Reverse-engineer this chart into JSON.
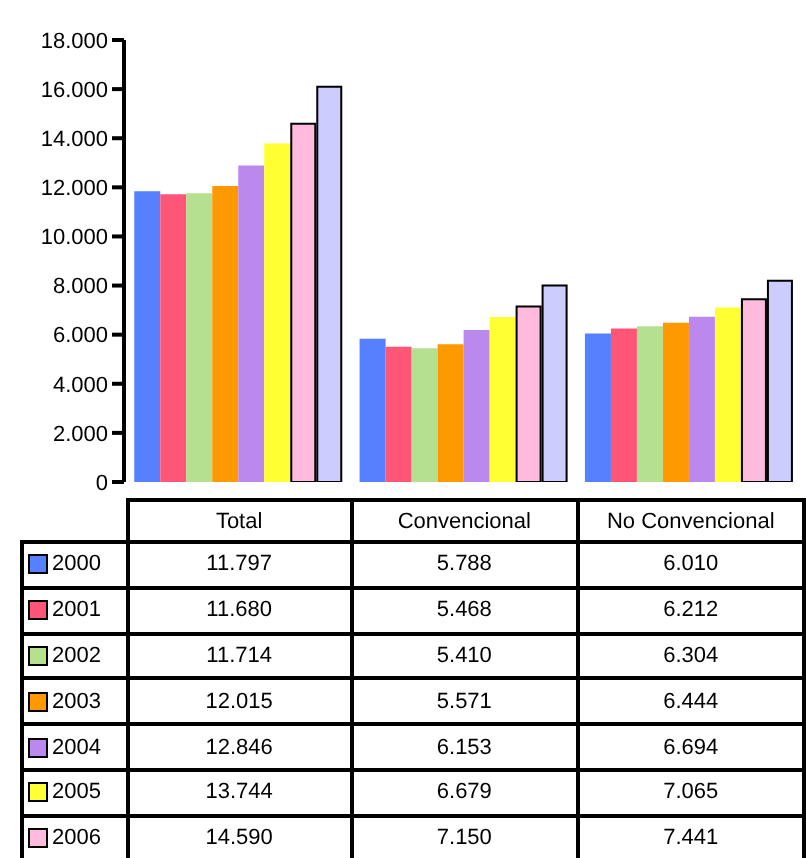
{
  "chart_data": {
    "type": "bar",
    "categories": [
      "Total",
      "Convencional",
      "No Convencional"
    ],
    "series": [
      {
        "name": "2000",
        "color": "#5580ff",
        "values": [
          11797,
          5788,
          6010
        ],
        "value_labels": [
          "11.797",
          "5.788",
          "6.010"
        ]
      },
      {
        "name": "2001",
        "color": "#ff5577",
        "values": [
          11680,
          5468,
          6212
        ],
        "value_labels": [
          "11.680",
          "5.468",
          "6.212"
        ]
      },
      {
        "name": "2002",
        "color": "#b5e090",
        "values": [
          11714,
          5410,
          6304
        ],
        "value_labels": [
          "11.714",
          "5.410",
          "6.304"
        ]
      },
      {
        "name": "2003",
        "color": "#ff9900",
        "values": [
          12015,
          5571,
          6444
        ],
        "value_labels": [
          "12.015",
          "5.571",
          "6.444"
        ]
      },
      {
        "name": "2004",
        "color": "#bb88ee",
        "values": [
          12846,
          6153,
          6694
        ],
        "value_labels": [
          "12.846",
          "6.153",
          "6.694"
        ]
      },
      {
        "name": "2005",
        "color": "#ffff33",
        "values": [
          13744,
          6679,
          7065
        ],
        "value_labels": [
          "13.744",
          "6.679",
          "7.065"
        ]
      },
      {
        "name": "2006",
        "color": "#ffbbdd",
        "values": [
          14590,
          7150,
          7441
        ],
        "value_labels": [
          "14.590",
          "7.150",
          "7.441"
        ]
      },
      {
        "color": "#ccccff",
        "values": [
          16100,
          8000,
          8200
        ]
      }
    ],
    "ylim": [
      0,
      18000
    ],
    "yticks": [
      {
        "value": 0,
        "label": "0"
      },
      {
        "value": 2000,
        "label": "2.000"
      },
      {
        "value": 4000,
        "label": "4.000"
      },
      {
        "value": 6000,
        "label": "6.000"
      },
      {
        "value": 8000,
        "label": "8.000"
      },
      {
        "value": 10000,
        "label": "10.000"
      },
      {
        "value": 12000,
        "label": "12.000"
      },
      {
        "value": 14000,
        "label": "14.000"
      },
      {
        "value": 16000,
        "label": "16.000"
      },
      {
        "value": 18000,
        "label": "18.000"
      }
    ],
    "grid": false,
    "legend": "bottom"
  }
}
